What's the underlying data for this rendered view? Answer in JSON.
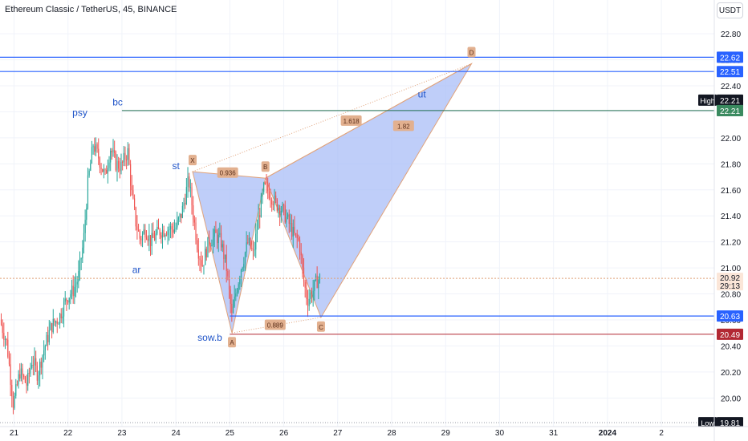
{
  "header": {
    "title": "Ethereum Classic / TetherUS, 45, BINANCE",
    "currency_button": "USDT"
  },
  "chart_data": {
    "type": "candlestick",
    "title": "Ethereum Classic / TetherUS, 45, BINANCE",
    "y_ticks": [
      20.0,
      20.2,
      20.4,
      20.6,
      20.8,
      21.0,
      21.2,
      21.4,
      21.6,
      21.8,
      22.0,
      22.2,
      22.4,
      22.6,
      22.8
    ],
    "x_ticks": [
      {
        "t": 0,
        "label": "21"
      },
      {
        "t": 1,
        "label": "22"
      },
      {
        "t": 2,
        "label": "23"
      },
      {
        "t": 3,
        "label": "24"
      },
      {
        "t": 4,
        "label": "25"
      },
      {
        "t": 5,
        "label": "26"
      },
      {
        "t": 6,
        "label": "27"
      },
      {
        "t": 7,
        "label": "28"
      },
      {
        "t": 8,
        "label": "29"
      },
      {
        "t": 9,
        "label": "30"
      },
      {
        "t": 10,
        "label": "31"
      },
      {
        "t": 11,
        "label": "2024"
      },
      {
        "t": 12,
        "label": "2"
      }
    ],
    "y_range": [
      19.78,
      23.06
    ],
    "x_range": [
      -0.26,
      12.98
    ],
    "colors": {
      "up": "#26a69a",
      "down": "#ef5350",
      "pattern_fill": "#aabdf7",
      "pattern_edge": "#e0a27a",
      "blue_line": "#2962ff",
      "red_line": "#b22833",
      "green_line": "#1f6e4f",
      "label_bg": "#e2b08f"
    },
    "candle_anchors": [
      [
        -0.25,
        20.6
      ],
      [
        -0.12,
        20.42
      ],
      [
        0.0,
        19.95
      ],
      [
        0.12,
        20.2
      ],
      [
        0.25,
        20.1
      ],
      [
        0.35,
        20.3
      ],
      [
        0.45,
        20.18
      ],
      [
        0.55,
        20.35
      ],
      [
        0.7,
        20.55
      ],
      [
        0.85,
        20.62
      ],
      [
        1.0,
        20.78
      ],
      [
        1.1,
        20.82
      ],
      [
        1.2,
        20.92
      ],
      [
        1.3,
        21.2
      ],
      [
        1.38,
        21.65
      ],
      [
        1.48,
        21.95
      ],
      [
        1.58,
        21.85
      ],
      [
        1.7,
        21.7
      ],
      [
        1.8,
        21.92
      ],
      [
        1.9,
        21.8
      ],
      [
        2.0,
        21.78
      ],
      [
        2.12,
        21.9
      ],
      [
        2.2,
        21.55
      ],
      [
        2.27,
        21.35
      ],
      [
        2.35,
        21.22
      ],
      [
        2.45,
        21.3
      ],
      [
        2.55,
        21.2
      ],
      [
        2.7,
        21.28
      ],
      [
        2.85,
        21.3
      ],
      [
        3.0,
        21.3
      ],
      [
        3.12,
        21.42
      ],
      [
        3.25,
        21.68
      ],
      [
        3.33,
        21.42
      ],
      [
        3.42,
        21.15
      ],
      [
        3.5,
        21.02
      ],
      [
        3.62,
        21.2
      ],
      [
        3.75,
        21.25
      ],
      [
        3.85,
        21.2
      ],
      [
        3.95,
        21.0
      ],
      [
        4.05,
        20.62
      ],
      [
        4.12,
        20.8
      ],
      [
        4.22,
        21.0
      ],
      [
        4.35,
        21.2
      ],
      [
        4.45,
        21.1
      ],
      [
        4.55,
        21.4
      ],
      [
        4.65,
        21.62
      ],
      [
        4.75,
        21.58
      ],
      [
        4.85,
        21.5
      ],
      [
        4.98,
        21.45
      ],
      [
        5.1,
        21.35
      ],
      [
        5.2,
        21.25
      ],
      [
        5.3,
        21.2
      ],
      [
        5.38,
        20.9
      ],
      [
        5.45,
        20.75
      ],
      [
        5.55,
        20.82
      ],
      [
        5.62,
        20.9
      ],
      [
        5.68,
        20.92
      ]
    ],
    "candle_count": 240,
    "candle_seed": 7,
    "pattern": {
      "points": [
        {
          "name": "X",
          "t": 3.31,
          "y": 21.74
        },
        {
          "name": "A",
          "t": 4.04,
          "y": 20.5
        },
        {
          "name": "B",
          "t": 4.66,
          "y": 21.69
        },
        {
          "name": "C",
          "t": 5.69,
          "y": 20.62
        },
        {
          "name": "D",
          "t": 8.48,
          "y": 22.57
        }
      ],
      "ratios": [
        {
          "label": "0.936",
          "t": 3.96,
          "y": 21.73
        },
        {
          "label": "0.889",
          "t": 4.84,
          "y": 20.56
        },
        {
          "label": "1.618",
          "t": 6.25,
          "y": 22.13
        },
        {
          "label": "1.82",
          "t": 7.22,
          "y": 22.09
        }
      ]
    },
    "annotations": [
      {
        "text": "psy",
        "t": 1.22,
        "y": 22.17
      },
      {
        "text": "bc",
        "t": 1.92,
        "y": 22.25
      },
      {
        "text": "st",
        "t": 3.0,
        "y": 21.76
      },
      {
        "text": "ar",
        "t": 2.27,
        "y": 20.96
      },
      {
        "text": "sow.b",
        "t": 3.63,
        "y": 20.44
      },
      {
        "text": "ut",
        "t": 7.56,
        "y": 22.31
      }
    ],
    "levels": [
      {
        "y": 22.62,
        "label": "22.62",
        "color": "#2962ff",
        "style": "solid"
      },
      {
        "y": 22.51,
        "label": "22.51",
        "color": "#2962ff",
        "style": "solid"
      },
      {
        "y": 22.21,
        "label": "22.21",
        "color": "#1f6e4f",
        "style": "solid",
        "start_t": 2.0
      },
      {
        "y": 20.63,
        "label": "20.63",
        "color": "#2962ff",
        "style": "solid",
        "start_t": 4.0
      },
      {
        "y": 20.49,
        "label": "20.49",
        "color": "#b22833",
        "style": "solid",
        "start_t": 4.0
      }
    ],
    "current_price": {
      "value": "20.92",
      "countdown": "29:13",
      "y": 20.92
    },
    "high": {
      "label": "High",
      "value": "22.21",
      "y": 22.21
    },
    "low": {
      "label": "Low",
      "value": "19.81",
      "y": 19.81
    },
    "green_tag": {
      "value": "22.21",
      "y": 22.21
    }
  }
}
